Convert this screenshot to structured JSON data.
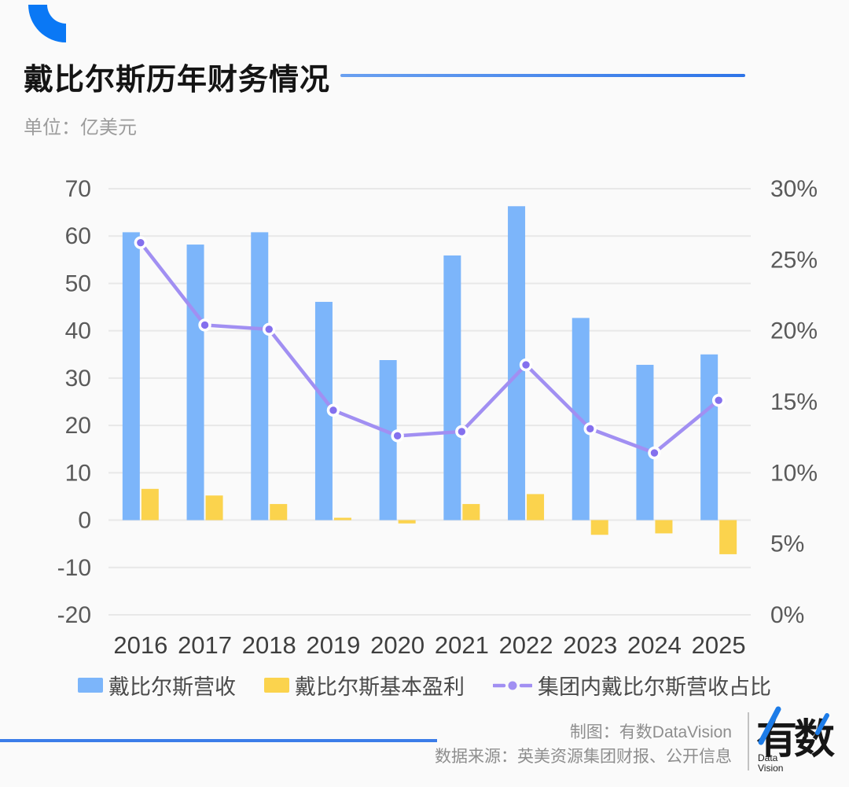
{
  "header": {
    "title": "戴比尔斯历年财务情况",
    "subtitle": "单位：亿美元"
  },
  "chart_data": {
    "type": "bar",
    "subtype": "grouped-bars-with-line-overlay",
    "categories": [
      "2016",
      "2017",
      "2018",
      "2019",
      "2020",
      "2021",
      "2022",
      "2023",
      "2024",
      "2025"
    ],
    "series": [
      {
        "name": "戴比尔斯营收",
        "type": "bar",
        "axis": "left",
        "color": "#7cb5fa",
        "values": [
          60.8,
          58.2,
          60.8,
          46.1,
          33.8,
          55.9,
          66.3,
          42.7,
          32.8,
          35.0
        ]
      },
      {
        "name": "戴比尔斯基本盈利",
        "type": "bar",
        "axis": "left",
        "color": "#fbd34d",
        "values": [
          6.6,
          5.2,
          3.4,
          0.5,
          -0.7,
          3.4,
          5.5,
          -3.1,
          -2.8,
          -7.2
        ]
      },
      {
        "name": "集团内戴比尔斯营收占比",
        "type": "line",
        "axis": "right",
        "color": "#a18ff2",
        "dot_color": "#8470ee",
        "values_percent": [
          26.2,
          20.4,
          20.1,
          14.4,
          12.6,
          12.9,
          17.6,
          13.1,
          11.4,
          15.1
        ]
      }
    ],
    "left_axis": {
      "ticks": [
        70,
        60,
        50,
        40,
        30,
        20,
        10,
        0,
        -10,
        -20
      ],
      "range": [
        -20,
        70
      ]
    },
    "right_axis": {
      "ticks_percent": [
        30,
        25,
        20,
        15,
        10,
        5,
        0
      ],
      "range_percent": [
        0,
        30
      ]
    },
    "grid": true,
    "legend_position": "bottom",
    "title": "戴比尔斯历年财务情况",
    "unit_note": "单位：亿美元"
  },
  "footer": {
    "credit": "制图：有数DataVision",
    "source": "数据来源：英美资源集团财报、公开信息",
    "logo_cn": "有数",
    "logo_en_line1": "Data",
    "logo_en_line2": "Vision"
  },
  "colors": {
    "background": "#fafafa",
    "gridline": "#e8e8e8",
    "axis_label": "#5a5a5a",
    "year_label": "#3f3f3f",
    "accent_blue": "#3b7de9",
    "arc_blue": "#0a78f5",
    "logo_accent": "#1d7ce8"
  }
}
